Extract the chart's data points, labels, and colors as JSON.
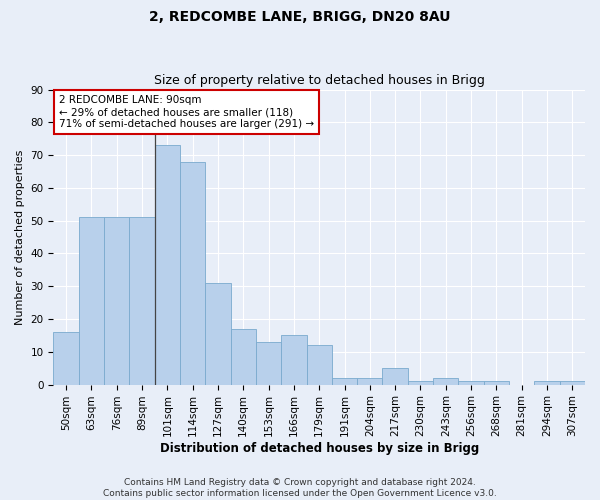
{
  "title1": "2, REDCOMBE LANE, BRIGG, DN20 8AU",
  "title2": "Size of property relative to detached houses in Brigg",
  "xlabel": "Distribution of detached houses by size in Brigg",
  "ylabel": "Number of detached properties",
  "categories": [
    "50sqm",
    "63sqm",
    "76sqm",
    "89sqm",
    "101sqm",
    "114sqm",
    "127sqm",
    "140sqm",
    "153sqm",
    "166sqm",
    "179sqm",
    "191sqm",
    "204sqm",
    "217sqm",
    "230sqm",
    "243sqm",
    "256sqm",
    "268sqm",
    "281sqm",
    "294sqm",
    "307sqm"
  ],
  "values": [
    16,
    51,
    51,
    51,
    73,
    68,
    31,
    17,
    13,
    15,
    12,
    2,
    2,
    5,
    1,
    2,
    1,
    1,
    0,
    1,
    1
  ],
  "bar_color": "#b8d0eb",
  "bar_edge_color": "#7aaace",
  "bg_color": "#e8eef8",
  "grid_color": "#ffffff",
  "annotation_line1": "2 REDCOMBE LANE: 90sqm",
  "annotation_line2": "← 29% of detached houses are smaller (118)",
  "annotation_line3": "71% of semi-detached houses are larger (291) →",
  "annotation_box_color": "#ffffff",
  "annotation_box_edge": "#cc0000",
  "ylim": [
    0,
    90
  ],
  "yticks": [
    0,
    10,
    20,
    30,
    40,
    50,
    60,
    70,
    80,
    90
  ],
  "footer": "Contains HM Land Registry data © Crown copyright and database right 2024.\nContains public sector information licensed under the Open Government Licence v3.0.",
  "title1_fontsize": 10,
  "title2_fontsize": 9,
  "xlabel_fontsize": 8.5,
  "ylabel_fontsize": 8,
  "tick_fontsize": 7.5,
  "annotation_fontsize": 7.5,
  "footer_fontsize": 6.5
}
